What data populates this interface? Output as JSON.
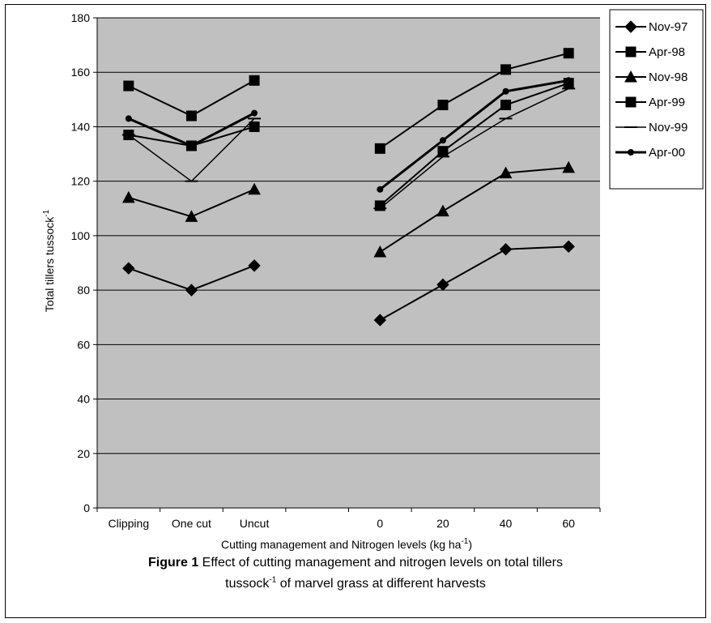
{
  "chart_data": {
    "type": "line",
    "x_categories": [
      "Clipping",
      "One cut",
      "Uncut",
      "",
      "0",
      "20",
      "40",
      "60"
    ],
    "xlabel": "Cutting management and Nitrogen levels (kg ha",
    "xlabel_sup": "-1",
    "xlabel_end": ")",
    "ylabel": "Total tillers tussock",
    "ylabel_sup": "-1",
    "ylim": [
      0,
      180
    ],
    "yticks": [
      "0",
      "20",
      "40",
      "60",
      "80",
      "100",
      "120",
      "140",
      "160",
      "180"
    ],
    "grid": true,
    "legend_position": "right",
    "plot_background": "#c0c0c0",
    "series": [
      {
        "name": "Nov-97",
        "marker": "diamond",
        "line_width": 2,
        "values": [
          88,
          80,
          89,
          null,
          69,
          82,
          95,
          96
        ]
      },
      {
        "name": "Apr-98",
        "marker": "square",
        "line_width": 2,
        "values": [
          155,
          144,
          157,
          null,
          132,
          148,
          161,
          167
        ]
      },
      {
        "name": "Nov-98",
        "marker": "triangle",
        "line_width": 2,
        "values": [
          114,
          107,
          117,
          null,
          94,
          109,
          123,
          125
        ]
      },
      {
        "name": "Apr-99",
        "marker": "square",
        "line_width": 2,
        "values": [
          137,
          133,
          140,
          null,
          111,
          131,
          148,
          156
        ]
      },
      {
        "name": "Nov-99",
        "marker": "dash",
        "line_width": 1.5,
        "values": [
          137,
          120,
          143,
          null,
          110,
          129,
          143,
          154
        ]
      },
      {
        "name": "Apr-00",
        "marker": "circle",
        "line_width": 3,
        "values": [
          143,
          133,
          145,
          null,
          117,
          135,
          153,
          157
        ]
      }
    ]
  },
  "caption": {
    "label": "Figure 1",
    "text_line1": " Effect of cutting management and nitrogen levels on total tillers",
    "text_line2a": "tussock",
    "text_line2_sup": "-1",
    "text_line2b": " of marvel grass at different harvests"
  }
}
